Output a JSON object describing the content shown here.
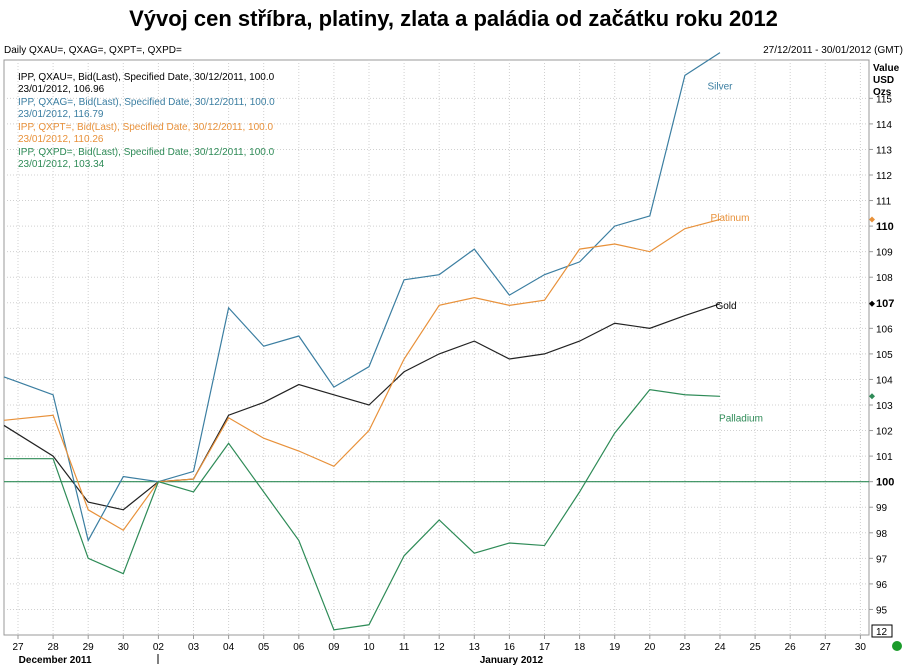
{
  "page": {
    "title": "Vývoj cen stříbra, platiny, zlata a paládia od začátku roku 2012",
    "instruments": "Daily QXAU=, QXAG=, QXPT=, QXPD=",
    "date_range": "27/12/2011 - 30/01/2012 (GMT)",
    "axis_unit_lines": [
      "Value",
      "USD",
      "Ozs"
    ]
  },
  "chart_data": {
    "type": "line",
    "x_categories": [
      "27",
      "28",
      "29",
      "30",
      "02",
      "03",
      "04",
      "05",
      "06",
      "09",
      "10",
      "11",
      "12",
      "13",
      "16",
      "17",
      "18",
      "19",
      "20",
      "23",
      "24",
      "25",
      "26",
      "27",
      "30"
    ],
    "x_month_labels": [
      {
        "label": "December 2011",
        "category": "28"
      },
      {
        "label": "January 2012",
        "category": "16"
      }
    ],
    "ylim": [
      94,
      116.5
    ],
    "y_ticks": [
      95,
      96,
      97,
      98,
      99,
      100,
      101,
      102,
      103,
      104,
      105,
      106,
      107,
      108,
      109,
      110,
      111,
      112,
      113,
      114,
      115
    ],
    "y_ticks_bold": [
      100,
      107,
      110
    ],
    "y_bottom_label": "12",
    "baseline": 100,
    "grid": true,
    "series": [
      {
        "name": "Gold",
        "legend_line1": "IPP, QXAU=, Bid(Last), Specified Date, 30/12/2011, 100.0",
        "legend_line2": "23/01/2012, 106.96",
        "color": "#222222",
        "last_label": "107",
        "values": [
          102.2,
          101.0,
          99.2,
          98.9,
          100.0,
          100.1,
          102.6,
          103.1,
          103.8,
          103.4,
          103.0,
          104.3,
          105.0,
          105.5,
          104.8,
          105.0,
          105.5,
          106.2,
          106.0,
          106.5,
          106.96
        ]
      },
      {
        "name": "Silver",
        "legend_line1": "IPP, QXAG=, Bid(Last), Specified Date, 30/12/2011, 100.0",
        "legend_line2": "23/01/2012, 116.79",
        "color": "#3b7ea1",
        "last_label": "",
        "values": [
          104.1,
          103.4,
          97.7,
          100.2,
          100.0,
          100.4,
          106.8,
          105.3,
          105.7,
          103.7,
          104.5,
          107.9,
          108.1,
          109.1,
          107.3,
          108.1,
          108.6,
          110.0,
          110.4,
          115.9,
          116.79
        ]
      },
      {
        "name": "Platinum",
        "legend_line1": "IPP, QXPT=, Bid(Last), Specified Date, 30/12/2011, 100.0",
        "legend_line2": "23/01/2012, 110.26",
        "color": "#e8913a",
        "last_label": "110",
        "values": [
          102.4,
          102.6,
          98.9,
          98.1,
          100.0,
          100.1,
          102.5,
          101.7,
          101.2,
          100.6,
          102.0,
          104.8,
          106.9,
          107.2,
          106.9,
          107.1,
          109.1,
          109.3,
          109.0,
          109.9,
          110.26
        ]
      },
      {
        "name": "Palladium",
        "legend_line1": "IPP, QXPD=, Bid(Last), Specified Date, 30/12/2011, 100.0",
        "legend_line2": "23/01/2012, 103.34",
        "color": "#2e8b57",
        "last_label": "",
        "values": [
          100.9,
          100.9,
          97.0,
          96.4,
          100.0,
          99.6,
          101.5,
          99.6,
          97.7,
          94.2,
          94.4,
          97.1,
          98.5,
          97.2,
          97.6,
          97.5,
          99.6,
          101.9,
          103.6,
          103.4,
          103.34
        ]
      }
    ]
  }
}
